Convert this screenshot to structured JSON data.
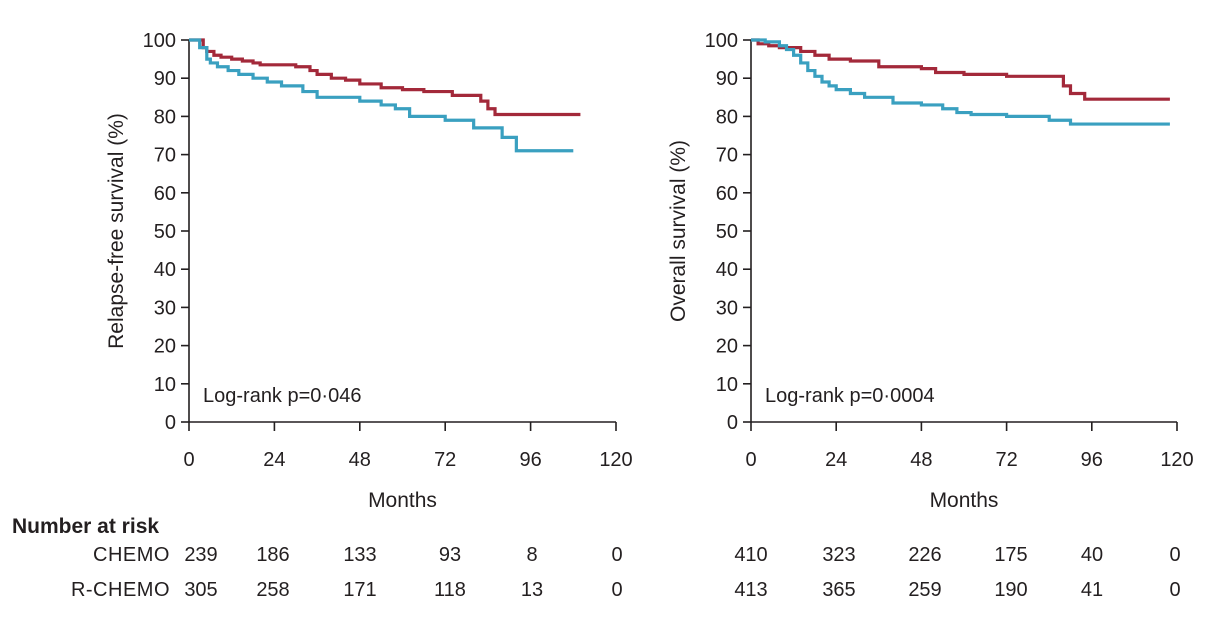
{
  "chart_data": [
    {
      "type": "line",
      "step": true,
      "ylabel": "Relapse-free survival (%)",
      "xlabel": "Months",
      "xlim": [
        0,
        120
      ],
      "ylim": [
        0,
        100
      ],
      "xticks": [
        "0",
        "24",
        "48",
        "72",
        "96",
        "120"
      ],
      "yticks": [
        "0",
        "10",
        "20",
        "30",
        "40",
        "50",
        "60",
        "70",
        "80",
        "90",
        "100"
      ],
      "annotation": "Log-rank p=0·046",
      "grid": false,
      "series": [
        {
          "color": "#a3293a",
          "x": [
            0,
            4,
            5,
            7,
            9,
            12,
            15,
            18,
            20,
            30,
            34,
            36,
            40,
            44,
            48,
            54,
            60,
            66,
            74,
            82,
            84,
            86,
            110
          ],
          "y": [
            100,
            98,
            97,
            96,
            95.5,
            95,
            94.5,
            94,
            93.5,
            93,
            92,
            91,
            90,
            89.5,
            88.5,
            87.5,
            87,
            86.5,
            85.5,
            84,
            82,
            80.5,
            80.5
          ]
        },
        {
          "color": "#3aa0c0",
          "x": [
            0,
            3,
            5,
            6,
            8,
            11,
            14,
            18,
            22,
            26,
            32,
            36,
            48,
            54,
            58,
            62,
            72,
            80,
            88,
            92,
            108
          ],
          "y": [
            100,
            98,
            95,
            94,
            93,
            92,
            91,
            90,
            89,
            88,
            86.5,
            85,
            84,
            83,
            82,
            80,
            79,
            77,
            74.5,
            71,
            71
          ]
        }
      ]
    },
    {
      "type": "line",
      "step": true,
      "ylabel": "Overall survival (%)",
      "xlabel": "Months",
      "xlim": [
        0,
        120
      ],
      "ylim": [
        0,
        100
      ],
      "xticks": [
        "0",
        "24",
        "48",
        "72",
        "96",
        "120"
      ],
      "yticks": [
        "0",
        "10",
        "20",
        "30",
        "40",
        "50",
        "60",
        "70",
        "80",
        "90",
        "100"
      ],
      "annotation": "Log-rank p=0·0004",
      "grid": false,
      "series": [
        {
          "color": "#a3293a",
          "x": [
            0,
            2,
            5,
            8,
            14,
            18,
            22,
            28,
            36,
            48,
            52,
            60,
            72,
            88,
            90,
            94,
            118
          ],
          "y": [
            100,
            99,
            98.5,
            98,
            97,
            96,
            95,
            94.5,
            93,
            92.5,
            91.5,
            91,
            90.5,
            88,
            86,
            84.5,
            84.5
          ]
        },
        {
          "color": "#3aa0c0",
          "x": [
            0,
            4,
            8,
            10,
            12,
            14,
            16,
            18,
            20,
            22,
            24,
            28,
            32,
            40,
            48,
            54,
            58,
            62,
            72,
            84,
            90,
            118
          ],
          "y": [
            100,
            99.5,
            98.5,
            97.5,
            96,
            94,
            92,
            90.5,
            89,
            88,
            87,
            86,
            85,
            83.5,
            83,
            82,
            81,
            80.5,
            80,
            79,
            78,
            78
          ]
        }
      ]
    }
  ],
  "risk_table": {
    "title": "Number at risk",
    "rows": [
      {
        "label": "CHEMO",
        "panel1": [
          "239",
          "186",
          "133",
          "93",
          "8",
          "0"
        ],
        "panel2": [
          "410",
          "323",
          "226",
          "175",
          "40",
          "0"
        ]
      },
      {
        "label": "R-CHEMO",
        "panel1": [
          "305",
          "258",
          "171",
          "118",
          "13",
          "0"
        ],
        "panel2": [
          "413",
          "365",
          "259",
          "190",
          "41",
          "0"
        ]
      }
    ]
  }
}
